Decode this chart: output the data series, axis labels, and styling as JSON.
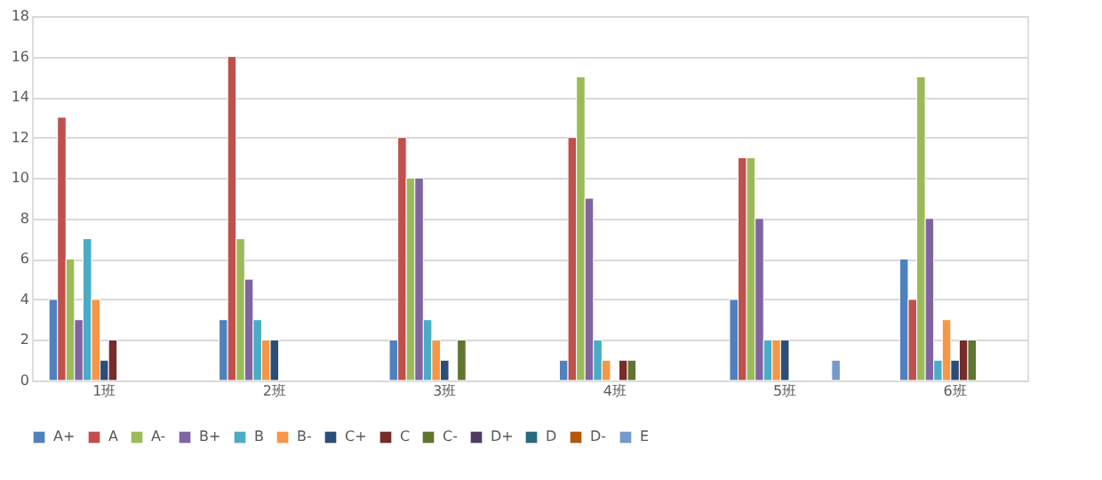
{
  "chart_data": {
    "type": "bar",
    "categories": [
      "1班",
      "2班",
      "3班",
      "4班",
      "5班",
      "6班"
    ],
    "series": [
      {
        "name": "A+",
        "color": "#4f81bd",
        "values": [
          4,
          3,
          2,
          1,
          4,
          6
        ]
      },
      {
        "name": "A",
        "color": "#c0504d",
        "values": [
          13,
          16,
          12,
          12,
          11,
          4
        ]
      },
      {
        "name": "A-",
        "color": "#9bbb59",
        "values": [
          6,
          7,
          10,
          15,
          11,
          15
        ]
      },
      {
        "name": "B+",
        "color": "#8064a2",
        "values": [
          3,
          5,
          10,
          9,
          8,
          8
        ]
      },
      {
        "name": "B",
        "color": "#4bacc6",
        "values": [
          7,
          3,
          3,
          2,
          2,
          1
        ]
      },
      {
        "name": "B-",
        "color": "#f79646",
        "values": [
          4,
          2,
          2,
          1,
          2,
          3
        ]
      },
      {
        "name": "C+",
        "color": "#2c4d75",
        "values": [
          1,
          2,
          1,
          null,
          2,
          1
        ]
      },
      {
        "name": "C",
        "color": "#772c2a",
        "values": [
          2,
          null,
          null,
          1,
          null,
          2
        ]
      },
      {
        "name": "C-",
        "color": "#5f7530",
        "values": [
          null,
          null,
          2,
          1,
          null,
          2
        ]
      },
      {
        "name": "D+",
        "color": "#4d3b62",
        "values": [
          null,
          null,
          null,
          null,
          null,
          null
        ]
      },
      {
        "name": "D",
        "color": "#276a7c",
        "values": [
          null,
          null,
          null,
          null,
          null,
          null
        ]
      },
      {
        "name": "D-",
        "color": "#b65708",
        "values": [
          null,
          null,
          null,
          null,
          null,
          null
        ]
      },
      {
        "name": "E",
        "color": "#729aca",
        "values": [
          null,
          null,
          null,
          null,
          1,
          null
        ]
      }
    ],
    "ylim": [
      0,
      18
    ],
    "yticks": [
      0,
      2,
      4,
      6,
      8,
      10,
      12,
      14,
      16,
      18
    ],
    "grid": "y",
    "legend": "bottom"
  }
}
